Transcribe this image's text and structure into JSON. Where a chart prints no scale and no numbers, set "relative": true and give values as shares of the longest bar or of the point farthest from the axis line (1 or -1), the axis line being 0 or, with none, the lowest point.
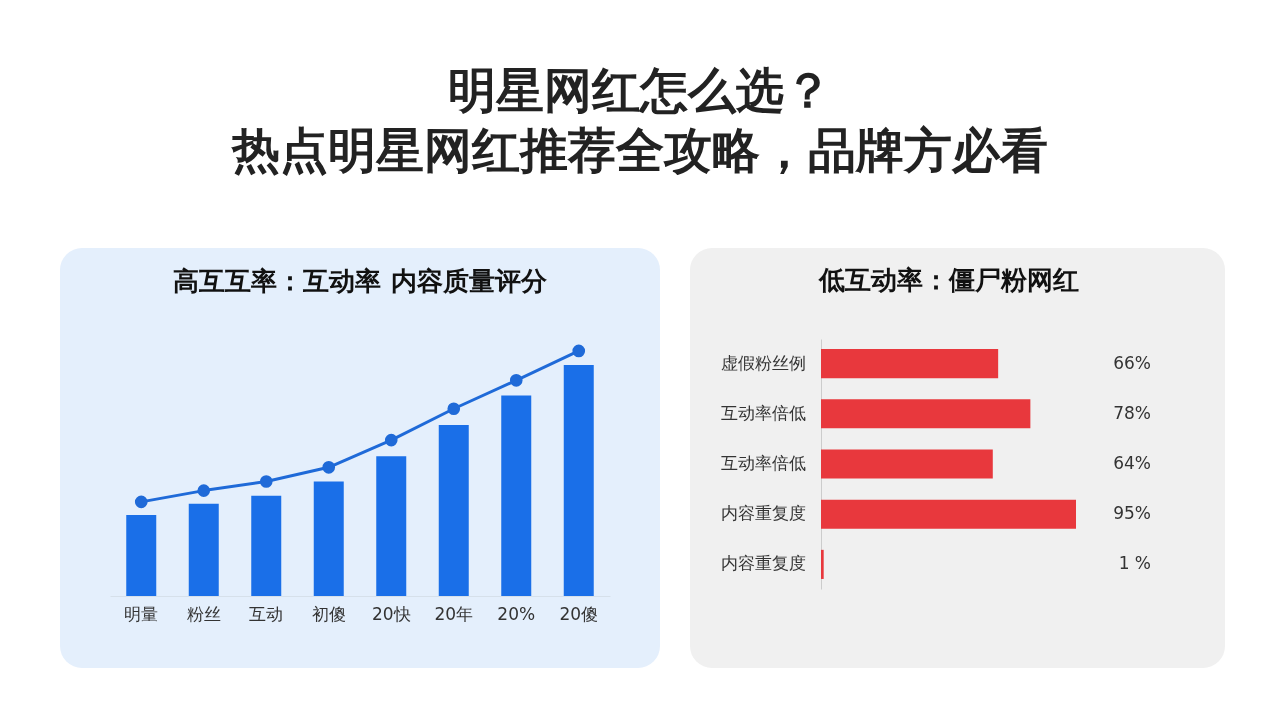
{
  "chart_data": [
    {
      "type": "other",
      "title": "明星网红怎么选？",
      "subtitle": "热点明星网红推荐全攻略，品牌方必看"
    },
    {
      "type": "bar",
      "title": "高互互率：互动率   内容质量评分",
      "relative": true,
      "categories": [
        "明量",
        "粉丝",
        "互动",
        "初傻",
        "20快",
        "20年",
        "20%",
        "20傻"
      ],
      "marker": "circle",
      "series": [
        {
          "type": "bar",
          "color": "#1a6fe8",
          "values": [
            0.33,
            0.376,
            0.409,
            0.467,
            0.57,
            0.698,
            0.818,
            0.942
          ]
        },
        {
          "type": "line",
          "color": "#1f6ad8",
          "values": [
            0.384,
            0.43,
            0.467,
            0.525,
            0.636,
            0.764,
            0.88,
            1
          ]
        }
      ]
    },
    {
      "type": "bar",
      "orientation": "horizontal",
      "title": "低互动率：僵尸粉网红",
      "categories": [
        "虚假粉丝例",
        "互动率倍低",
        "互动率倍低",
        "内容重复度",
        "内容重复度"
      ],
      "color": "#e8383d",
      "values": [
        66,
        78,
        64,
        95,
        1
      ],
      "value_labels": [
        "66%",
        "78%",
        "64%",
        "95%",
        "1 %"
      ]
    }
  ]
}
